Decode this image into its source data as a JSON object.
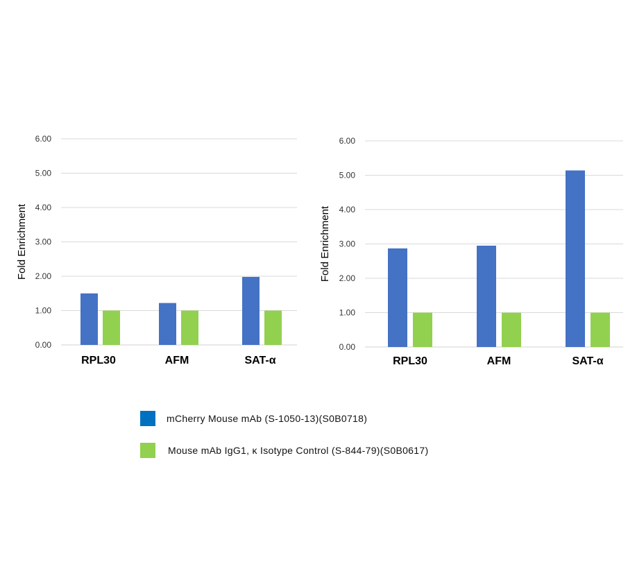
{
  "colors": {
    "series1": "#4472C4",
    "series2": "#92D050",
    "legend_swatch1": "#0070C0",
    "legend_swatch2": "#92D050",
    "grid": "#D9D9D9"
  },
  "chart_data": [
    {
      "type": "bar",
      "ylabel": "Fold Enrichment",
      "ylim": [
        0,
        6
      ],
      "yticks": [
        "0.00",
        "1.00",
        "2.00",
        "3.00",
        "4.00",
        "5.00",
        "6.00"
      ],
      "categories": [
        "RPL30",
        "AFM",
        "SAT-α"
      ],
      "grid": true,
      "series": [
        {
          "values": [
            1.5,
            1.22,
            1.98
          ]
        },
        {
          "values": [
            1.0,
            1.0,
            1.0
          ]
        }
      ]
    },
    {
      "type": "bar",
      "ylabel": "Fold Enrichment",
      "ylim": [
        0,
        6
      ],
      "yticks": [
        "0.00",
        "1.00",
        "2.00",
        "3.00",
        "4.00",
        "5.00",
        "6.00"
      ],
      "categories": [
        "RPL30",
        "AFM",
        "SAT-α"
      ],
      "grid": true,
      "series": [
        {
          "values": [
            2.87,
            2.95,
            5.14
          ]
        },
        {
          "values": [
            1.0,
            1.0,
            1.0
          ]
        }
      ]
    }
  ],
  "legend": [
    {
      "label": "mCherry Mouse mAb (S-1050-13)(S0B0718)"
    },
    {
      "label": "Mouse mAb IgG1, κ Isotype Control (S-844-79)(S0B0617)"
    }
  ]
}
